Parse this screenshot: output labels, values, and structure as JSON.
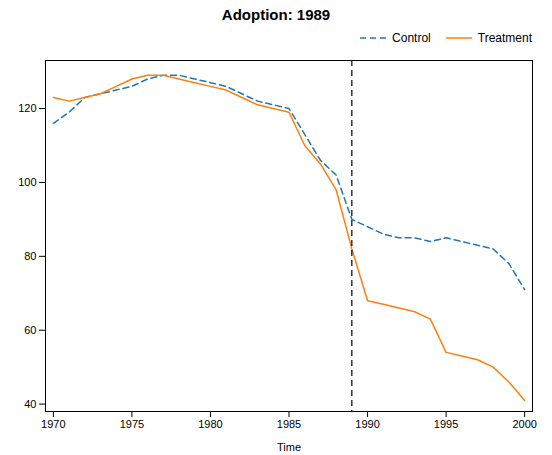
{
  "chart_data": {
    "type": "line",
    "title": "Adoption: 1989",
    "xlabel": "Time",
    "x": [
      1970,
      1971,
      1972,
      1973,
      1974,
      1975,
      1976,
      1977,
      1978,
      1979,
      1980,
      1981,
      1982,
      1983,
      1984,
      1985,
      1986,
      1987,
      1988,
      1989,
      1990,
      1991,
      1992,
      1993,
      1994,
      1995,
      1996,
      1997,
      1998,
      1999,
      2000
    ],
    "series": [
      {
        "name": "Control",
        "color": "#1f77b4",
        "line_style": "dashed",
        "values": [
          116,
          119,
          123,
          124,
          125,
          126,
          128,
          129,
          129,
          128,
          127,
          126,
          124,
          122,
          121,
          120,
          113,
          106,
          102,
          90,
          88,
          86,
          85,
          85,
          84,
          85,
          84,
          83,
          82,
          78,
          71
        ]
      },
      {
        "name": "Treatment",
        "color": "#ff7f0e",
        "line_style": "solid",
        "values": [
          123,
          122,
          123,
          124,
          126,
          128,
          129,
          129,
          128,
          127,
          126,
          125,
          123,
          121,
          120,
          119,
          110,
          105,
          98,
          82,
          68,
          67,
          66,
          65,
          63,
          54,
          53,
          52,
          50,
          46,
          41
        ]
      }
    ],
    "vline_x": 1989,
    "xlim": [
      1969.5,
      2000.5
    ],
    "ylim": [
      38,
      133
    ],
    "xticks": [
      1970,
      1975,
      1980,
      1985,
      1990,
      1995,
      2000
    ],
    "yticks": [
      40,
      60,
      80,
      100,
      120
    ],
    "legend": "upper right"
  }
}
